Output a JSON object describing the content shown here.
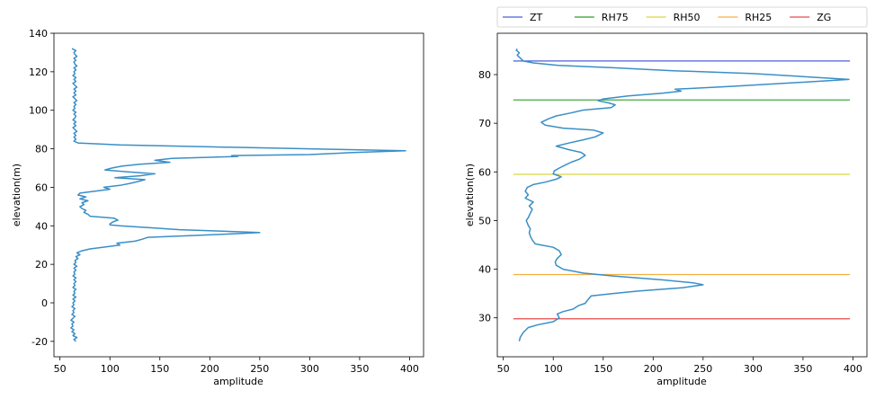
{
  "chart_data": [
    {
      "type": "line",
      "xlabel": "amplitude",
      "ylabel": "elevation(m)",
      "xlim": [
        44,
        414
      ],
      "ylim": [
        -28,
        140
      ],
      "xticks": [
        50,
        100,
        150,
        200,
        250,
        300,
        350,
        400
      ],
      "yticks": [
        -20,
        0,
        20,
        40,
        60,
        80,
        100,
        120,
        140
      ],
      "grid": false,
      "series": [
        {
          "color": "#3a8fc6",
          "points": [
            [
              66,
              -20
            ],
            [
              64,
              -19
            ],
            [
              67,
              -18
            ],
            [
              63,
              -17
            ],
            [
              65,
              -16
            ],
            [
              62,
              -15
            ],
            [
              64,
              -14
            ],
            [
              61,
              -13
            ],
            [
              63,
              -12
            ],
            [
              62,
              -11
            ],
            [
              64,
              -10
            ],
            [
              61,
              -9
            ],
            [
              63,
              -8
            ],
            [
              65,
              -7
            ],
            [
              62,
              -6
            ],
            [
              64,
              -5
            ],
            [
              63,
              -4
            ],
            [
              65,
              -3
            ],
            [
              62,
              -2
            ],
            [
              64,
              -1
            ],
            [
              63,
              0
            ],
            [
              65,
              1
            ],
            [
              63,
              2
            ],
            [
              66,
              3
            ],
            [
              63,
              4
            ],
            [
              65,
              5
            ],
            [
              64,
              6
            ],
            [
              66,
              7
            ],
            [
              63,
              8
            ],
            [
              65,
              9
            ],
            [
              64,
              10
            ],
            [
              66,
              11
            ],
            [
              64,
              12
            ],
            [
              66,
              13
            ],
            [
              63,
              14
            ],
            [
              65,
              15
            ],
            [
              64,
              16
            ],
            [
              66,
              17
            ],
            [
              64,
              18
            ],
            [
              67,
              19
            ],
            [
              64,
              20
            ],
            [
              66,
              21
            ],
            [
              65,
              22
            ],
            [
              68,
              23
            ],
            [
              66,
              24
            ],
            [
              70,
              25
            ],
            [
              67,
              26
            ],
            [
              72,
              27
            ],
            [
              80,
              28
            ],
            [
              95,
              29
            ],
            [
              110,
              30
            ],
            [
              107,
              31
            ],
            [
              125,
              32
            ],
            [
              132,
              33
            ],
            [
              138,
              34
            ],
            [
              185,
              35
            ],
            [
              230,
              36
            ],
            [
              250,
              36.5
            ],
            [
              225,
              37
            ],
            [
              170,
              38
            ],
            [
              140,
              39
            ],
            [
              110,
              40
            ],
            [
              100,
              40.5
            ],
            [
              100,
              41
            ],
            [
              103,
              42
            ],
            [
              108,
              43
            ],
            [
              104,
              44
            ],
            [
              80,
              45
            ],
            [
              78,
              46
            ],
            [
              74,
              47
            ],
            [
              76,
              48
            ],
            [
              72,
              49
            ],
            [
              70,
              50
            ],
            [
              74,
              51
            ],
            [
              72,
              52
            ],
            [
              78,
              53
            ],
            [
              70,
              54
            ],
            [
              76,
              55
            ],
            [
              68,
              56
            ],
            [
              70,
              57
            ],
            [
              85,
              58
            ],
            [
              100,
              59
            ],
            [
              94,
              60
            ],
            [
              110,
              61
            ],
            [
              120,
              62
            ],
            [
              128,
              63
            ],
            [
              135,
              64
            ],
            [
              105,
              65
            ],
            [
              130,
              66
            ],
            [
              145,
              67
            ],
            [
              118,
              68
            ],
            [
              95,
              69
            ],
            [
              102,
              70
            ],
            [
              112,
              71
            ],
            [
              130,
              72
            ],
            [
              160,
              73
            ],
            [
              145,
              74
            ],
            [
              162,
              75
            ],
            [
              228,
              76
            ],
            [
              222,
              76.5
            ],
            [
              300,
              77
            ],
            [
              340,
              78
            ],
            [
              396,
              79
            ],
            [
              300,
              80
            ],
            [
              200,
              81
            ],
            [
              110,
              82
            ],
            [
              68,
              83
            ],
            [
              64,
              84
            ],
            [
              66,
              85
            ],
            [
              64,
              86
            ],
            [
              66,
              87
            ],
            [
              64,
              88
            ],
            [
              67,
              89
            ],
            [
              65,
              90
            ],
            [
              63,
              91
            ],
            [
              66,
              92
            ],
            [
              64,
              93
            ],
            [
              66,
              94
            ],
            [
              63,
              95
            ],
            [
              65,
              96
            ],
            [
              66,
              97
            ],
            [
              64,
              98
            ],
            [
              66,
              99
            ],
            [
              63,
              100
            ],
            [
              65,
              101
            ],
            [
              64,
              102
            ],
            [
              66,
              103
            ],
            [
              64,
              104
            ],
            [
              67,
              105
            ],
            [
              65,
              106
            ],
            [
              63,
              107
            ],
            [
              66,
              108
            ],
            [
              64,
              109
            ],
            [
              66,
              110
            ],
            [
              64,
              111
            ],
            [
              67,
              112
            ],
            [
              65,
              113
            ],
            [
              63,
              114
            ],
            [
              66,
              115
            ],
            [
              64,
              116
            ],
            [
              66,
              117
            ],
            [
              63,
              118
            ],
            [
              65,
              119
            ],
            [
              64,
              120
            ],
            [
              66,
              121
            ],
            [
              64,
              122
            ],
            [
              67,
              123
            ],
            [
              65,
              124
            ],
            [
              64,
              125
            ],
            [
              66,
              126
            ],
            [
              64,
              127
            ],
            [
              67,
              128
            ],
            [
              65,
              129
            ],
            [
              64,
              130
            ],
            [
              66,
              131
            ],
            [
              62,
              132
            ]
          ]
        }
      ]
    },
    {
      "type": "line",
      "xlabel": "amplitude",
      "ylabel": "elevation(m)",
      "xlim": [
        44,
        414
      ],
      "ylim": [
        22,
        88.5
      ],
      "xticks": [
        50,
        100,
        150,
        200,
        250,
        300,
        350,
        400
      ],
      "yticks": [
        30,
        40,
        50,
        60,
        70,
        80
      ],
      "grid": false,
      "legend": {
        "placement": "top, above plot (single row)",
        "entries": [
          {
            "name": "ZT",
            "color": "#4a5fd9"
          },
          {
            "name": "RH75",
            "color": "#2ca02c"
          },
          {
            "name": "RH50",
            "color": "#d6d640"
          },
          {
            "name": "RH25",
            "color": "#f5b041"
          },
          {
            "name": "ZG",
            "color": "#e84a4a"
          }
        ]
      },
      "hlines": [
        {
          "name": "ZT",
          "y": 82.8,
          "x": [
            60,
            397
          ],
          "color": "#4a5fd9"
        },
        {
          "name": "RH75",
          "y": 74.8,
          "x": [
            60,
            397
          ],
          "color": "#2ca02c"
        },
        {
          "name": "RH50",
          "y": 59.5,
          "x": [
            60,
            397
          ],
          "color": "#d6d640"
        },
        {
          "name": "RH25",
          "y": 38.9,
          "x": [
            60,
            397
          ],
          "color": "#f5b041"
        },
        {
          "name": "ZG",
          "y": 29.8,
          "x": [
            60,
            397
          ],
          "color": "#e84a4a"
        }
      ],
      "series": [
        {
          "color": "#3a8fc6",
          "points": [
            [
              66,
              25.2
            ],
            [
              67,
              26
            ],
            [
              70,
              27
            ],
            [
              75,
              28
            ],
            [
              85,
              28.6
            ],
            [
              100,
              29.2
            ],
            [
              106,
              30
            ],
            [
              104,
              30.8
            ],
            [
              110,
              31.3
            ],
            [
              120,
              31.8
            ],
            [
              125,
              32.5
            ],
            [
              132,
              33
            ],
            [
              135,
              33.8
            ],
            [
              138,
              34.5
            ],
            [
              160,
              35
            ],
            [
              185,
              35.5
            ],
            [
              230,
              36.2
            ],
            [
              250,
              36.8
            ],
            [
              240,
              37.2
            ],
            [
              210,
              37.8
            ],
            [
              160,
              38.6
            ],
            [
              130,
              39.2
            ],
            [
              110,
              40
            ],
            [
              103,
              40.8
            ],
            [
              102,
              41.5
            ],
            [
              104,
              42.2
            ],
            [
              108,
              43
            ],
            [
              106,
              43.8
            ],
            [
              100,
              44.5
            ],
            [
              82,
              45.2
            ],
            [
              79,
              46
            ],
            [
              77,
              46.8
            ],
            [
              76,
              47.5
            ],
            [
              77,
              48.3
            ],
            [
              75,
              49
            ],
            [
              73,
              50
            ],
            [
              75,
              50.6
            ],
            [
              77,
              51.5
            ],
            [
              79,
              52.3
            ],
            [
              76,
              53
            ],
            [
              80,
              53.8
            ],
            [
              72,
              54.6
            ],
            [
              75,
              55.3
            ],
            [
              72,
              56
            ],
            [
              74,
              56.8
            ],
            [
              80,
              57.4
            ],
            [
              92,
              57.9
            ],
            [
              103,
              58.5
            ],
            [
              108,
              59
            ],
            [
              100,
              59.6
            ],
            [
              101,
              60.2
            ],
            [
              106,
              60.8
            ],
            [
              112,
              61.4
            ],
            [
              118,
              62
            ],
            [
              126,
              62.6
            ],
            [
              132,
              63.4
            ],
            [
              128,
              64
            ],
            [
              115,
              64.6
            ],
            [
              103,
              65.3
            ],
            [
              115,
              65.9
            ],
            [
              130,
              66.6
            ],
            [
              142,
              67.2
            ],
            [
              150,
              68
            ],
            [
              140,
              68.6
            ],
            [
              110,
              69
            ],
            [
              92,
              69.6
            ],
            [
              88,
              70.2
            ],
            [
              95,
              70.9
            ],
            [
              103,
              71.5
            ],
            [
              117,
              72.1
            ],
            [
              130,
              72.7
            ],
            [
              158,
              73.2
            ],
            [
              162,
              73.8
            ],
            [
              155,
              74.2
            ],
            [
              145,
              74.6
            ],
            [
              150,
              75
            ],
            [
              175,
              75.6
            ],
            [
              210,
              76.2
            ],
            [
              228,
              76.6
            ],
            [
              222,
              77
            ],
            [
              280,
              77.6
            ],
            [
              330,
              78.2
            ],
            [
              396,
              79
            ],
            [
              350,
              79.6
            ],
            [
              300,
              80.2
            ],
            [
              220,
              80.8
            ],
            [
              160,
              81.4
            ],
            [
              105,
              81.9
            ],
            [
              80,
              82.4
            ],
            [
              70,
              82.8
            ],
            [
              67,
              83.4
            ],
            [
              64,
              84
            ],
            [
              66,
              84.5
            ],
            [
              63,
              85
            ],
            [
              64,
              85.3
            ]
          ]
        }
      ]
    }
  ]
}
